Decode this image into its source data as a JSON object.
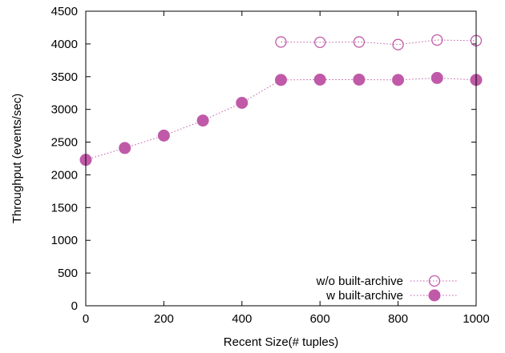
{
  "chart_data": {
    "type": "line",
    "title": "",
    "xlabel": "Recent Size(# tuples)",
    "ylabel": "Throughput (events/sec)",
    "xlim": [
      0,
      1000
    ],
    "ylim": [
      0,
      4500
    ],
    "xticks": [
      0,
      200,
      400,
      600,
      800,
      1000
    ],
    "yticks": [
      0,
      500,
      1000,
      1500,
      2000,
      2500,
      3000,
      3500,
      4000,
      4500
    ],
    "grid": false,
    "legend_position": "bottom-right",
    "series": [
      {
        "name": "w/o built-archive",
        "marker": "open-circle",
        "line_style": "dotted",
        "color": "#c05aa8",
        "x": [
          500,
          600,
          700,
          800,
          900,
          1000
        ],
        "y": [
          4030,
          4025,
          4030,
          3990,
          4060,
          4050
        ]
      },
      {
        "name": "w built-archive",
        "marker": "filled-circle",
        "line_style": "dotted",
        "color": "#c05aa8",
        "x": [
          0,
          100,
          200,
          300,
          400,
          500,
          600,
          700,
          800,
          900,
          1000
        ],
        "y": [
          2230,
          2410,
          2600,
          2830,
          3100,
          3450,
          3455,
          3455,
          3450,
          3480,
          3450
        ]
      }
    ]
  }
}
